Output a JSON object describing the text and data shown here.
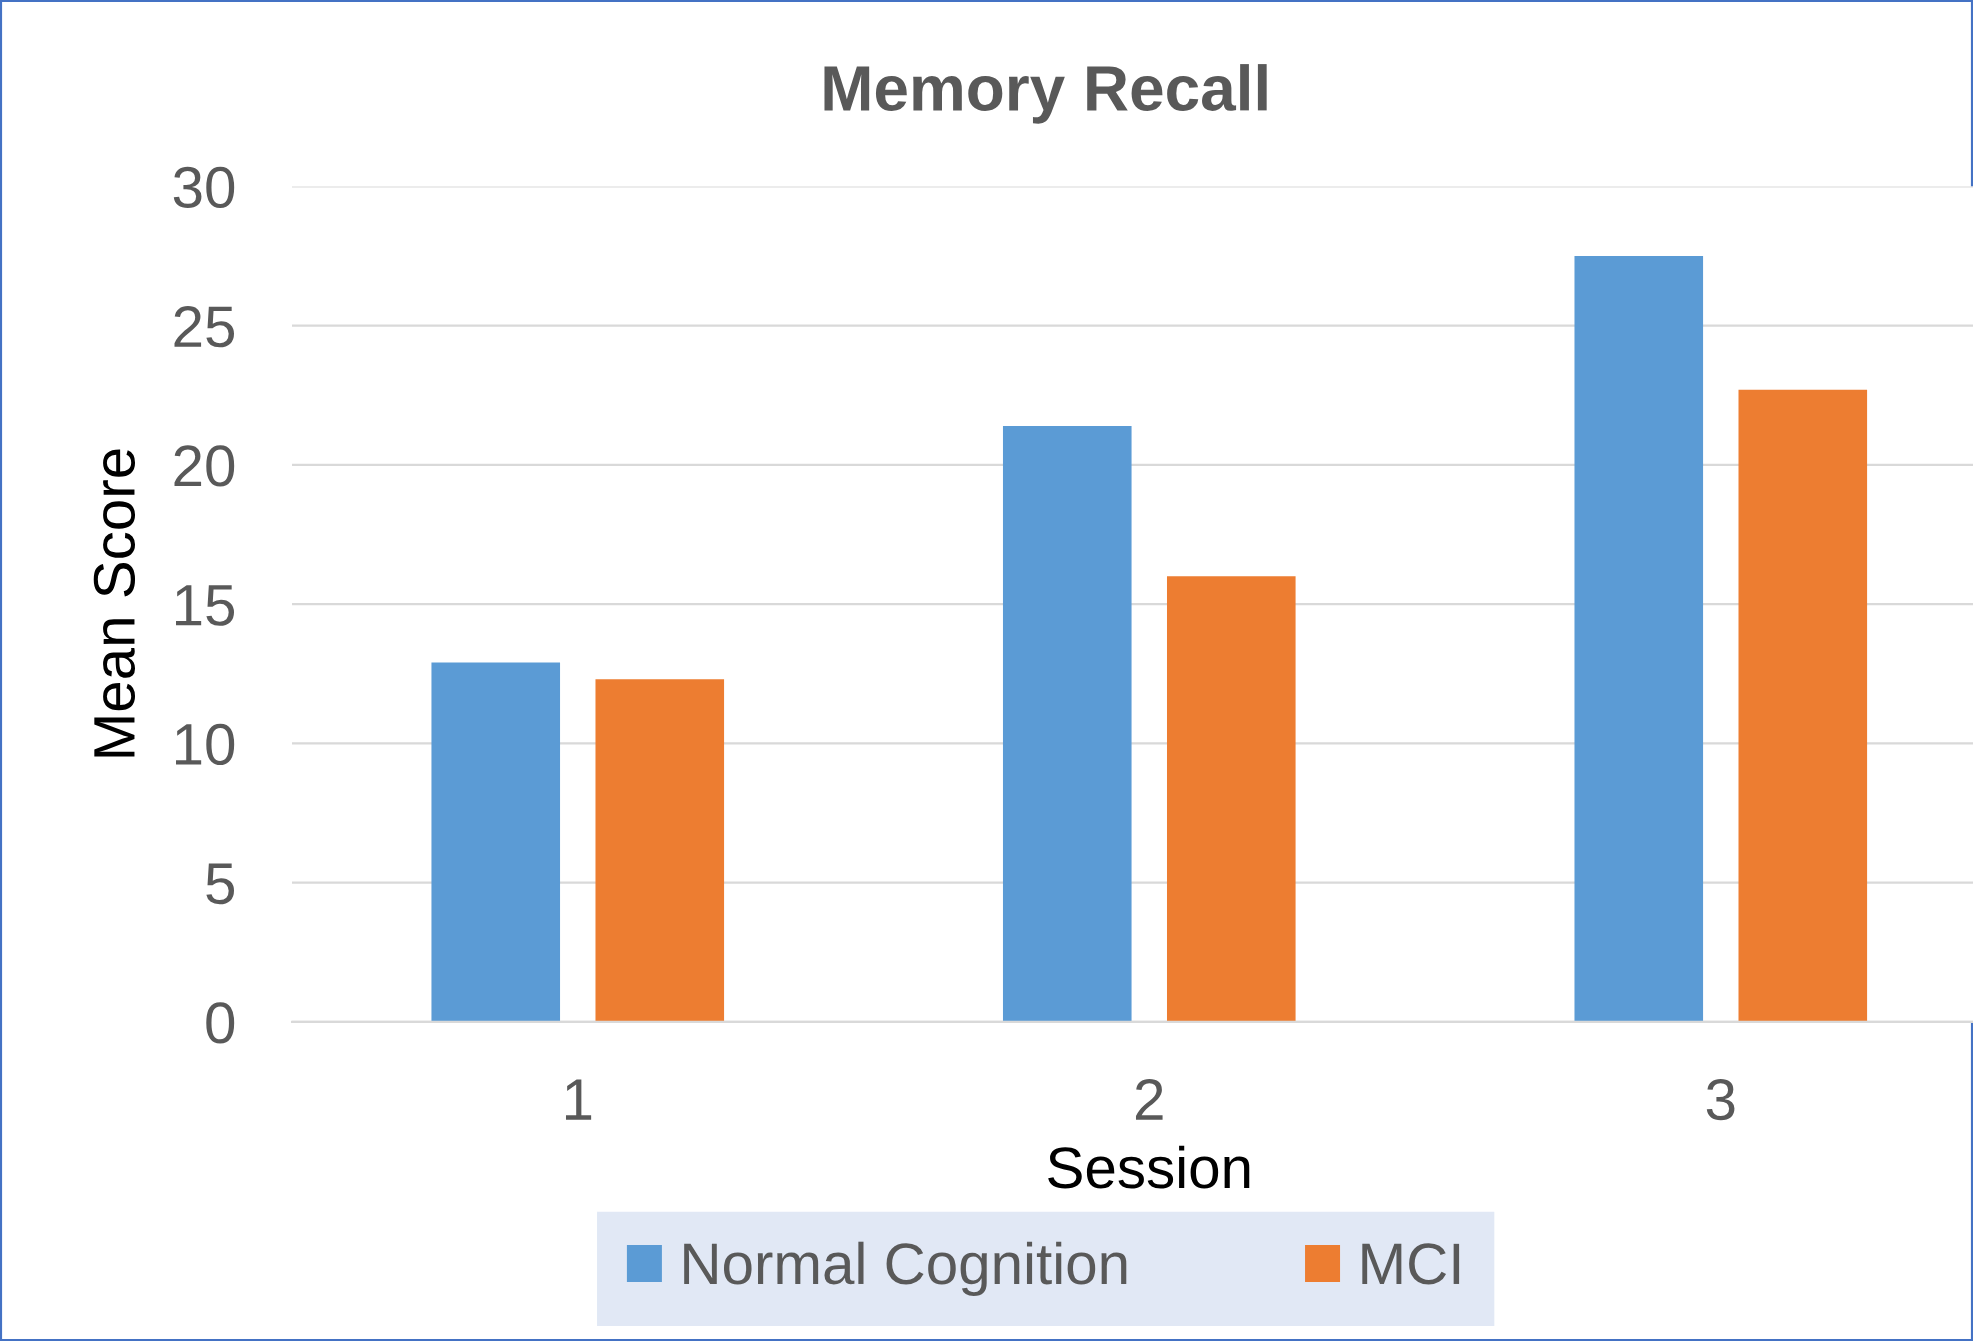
{
  "chart_data": {
    "type": "bar",
    "title": "Memory Recall",
    "xlabel": "Session",
    "ylabel": "Mean Score",
    "categories": [
      "1",
      "2",
      "3"
    ],
    "series": [
      {
        "name": "Normal Cognition",
        "color": "#5b9bd5",
        "values": [
          12.9,
          21.4,
          27.5
        ]
      },
      {
        "name": "MCI",
        "color": "#ed7d31",
        "values": [
          12.3,
          16.0,
          22.7
        ]
      }
    ],
    "ylim": [
      0,
      30
    ],
    "yticks": [
      0,
      5,
      10,
      15,
      20,
      25,
      30
    ],
    "grid": "y",
    "legend": "bottom"
  }
}
